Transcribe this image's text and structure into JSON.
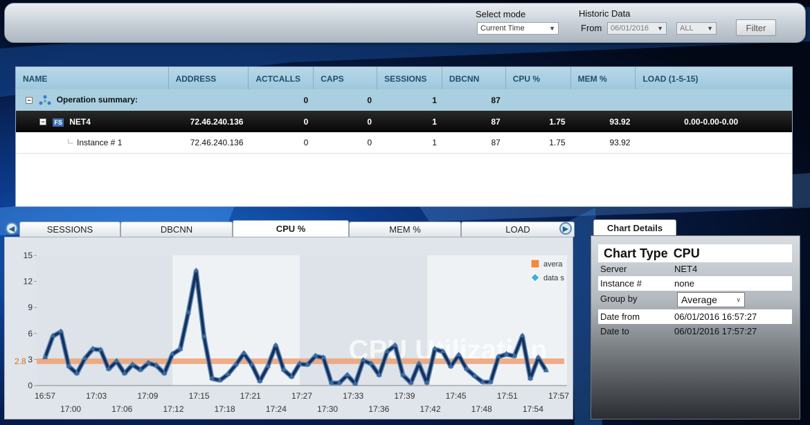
{
  "toolbar": {
    "select_mode_label": "Select mode",
    "select_mode_value": "Current Time",
    "historic_label": "Historic Data",
    "from_label": "From",
    "from_value": "06/01/2016",
    "range_value": "ALL",
    "filter_label": "Filter"
  },
  "grid": {
    "headers": [
      "NAME",
      "ADDRESS",
      "ACTCALLS",
      "CAPS",
      "SESSIONS",
      "DBCNN",
      "CPU %",
      "MEM %",
      "LOAD (1-5-15)"
    ],
    "summary": {
      "name": "Operation summary:",
      "actcalls": "0",
      "caps": "0",
      "sessions": "1",
      "dbcnn": "87"
    },
    "net": {
      "badge": "FS",
      "name": "NET4",
      "address": "72.46.240.136",
      "actcalls": "0",
      "caps": "0",
      "sessions": "1",
      "dbcnn": "87",
      "cpu": "1.75",
      "mem": "93.92",
      "load": "0.00-0.00-0.00"
    },
    "instance": {
      "name": "Instance # 1",
      "address": "72.46.240.136",
      "actcalls": "0",
      "caps": "0",
      "sessions": "1",
      "dbcnn": "87",
      "cpu": "1.75",
      "mem": "93.92"
    }
  },
  "tabs": [
    "SESSIONS",
    "DBCNN",
    "CPU %",
    "MEM %",
    "LOAD"
  ],
  "details": {
    "tab_label": "Chart Details",
    "chart_type_label": "Chart Type",
    "chart_type_value": "CPU",
    "server_label": "Server",
    "server_value": "NET4",
    "instance_label": "Instance #",
    "instance_value": "none",
    "group_label": "Group by",
    "group_value": "Average",
    "date_from_label": "Date from",
    "date_from_value": "06/01/2016 16:57:27",
    "date_to_label": "Date to",
    "date_to_value": "06/01/2016 17:57:27"
  },
  "colors": {
    "line": "#14325c",
    "average": "#f0a070",
    "accent": "#1e4d6b"
  },
  "chart_data": {
    "type": "line",
    "watermark": "CPU Utilization",
    "average_label": "2.8",
    "legend": [
      "avera",
      "data s"
    ],
    "ylim": [
      0,
      15
    ],
    "yticks": [
      0,
      3,
      6,
      9,
      12,
      15
    ],
    "xticks_top": [
      "16:57",
      "17:03",
      "17:09",
      "17:15",
      "17:21",
      "17:27",
      "17:33",
      "17:39",
      "17:45",
      "17:51",
      "17:57"
    ],
    "xticks_bottom": [
      "17:00",
      "17:06",
      "17:12",
      "17:18",
      "17:24",
      "17:30",
      "17:36",
      "17:42",
      "17:48",
      "17:54"
    ],
    "average": 2.8,
    "series": [
      {
        "values": [
          3.2,
          5.7,
          6.2,
          2.2,
          1.4,
          3.1,
          4.2,
          4.1,
          1.9,
          2.8,
          1.4,
          2.4,
          1.8,
          2.6,
          2.3,
          1.4,
          3.6,
          4.2,
          8.4,
          13.2,
          5.6,
          0.8,
          0.6,
          1.3,
          2.4,
          3.7,
          2.4,
          0.5,
          2.2,
          4.6,
          1.8,
          1.0,
          2.5,
          2.4,
          3.4,
          3.2,
          0.3,
          0.3,
          1.2,
          0.2,
          2.9,
          2.5,
          1.2,
          3.9,
          4.6,
          1.2,
          0.3,
          2.5,
          0.3,
          4.2,
          3.9,
          2.2,
          3.5,
          1.9,
          1.1,
          0.4,
          0.4,
          3.3,
          3.6,
          3.4,
          5.7,
          0.8,
          3.2,
          1.7
        ]
      }
    ]
  }
}
